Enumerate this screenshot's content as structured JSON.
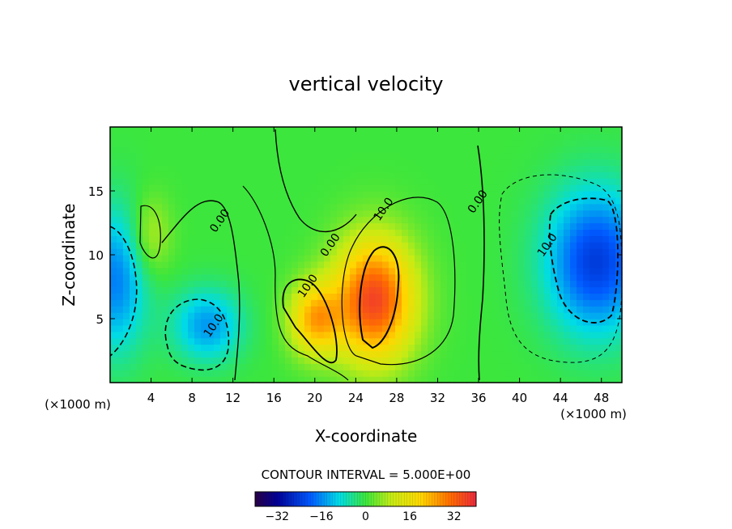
{
  "chart_data": {
    "type": "heatmap",
    "title": "vertical velocity",
    "xlabel": "X-coordinate",
    "ylabel": "Z-coordinate",
    "x_unit_left": "(×1000 m)",
    "x_unit_right": "(×1000 m)",
    "xlim": [
      0,
      50
    ],
    "ylim": [
      0,
      20
    ],
    "xticks": [
      "4",
      "8",
      "12",
      "16",
      "20",
      "24",
      "28",
      "32",
      "36",
      "40",
      "44",
      "48"
    ],
    "xtick_values": [
      4,
      8,
      12,
      16,
      20,
      24,
      28,
      32,
      36,
      40,
      44,
      48
    ],
    "yticks": [
      "5",
      "10",
      "15"
    ],
    "ytick_values": [
      5,
      10,
      15
    ],
    "contour_interval_text": "CONTOUR INTERVAL = 5.000E+00",
    "contour_labels": [
      {
        "text": "0.00",
        "x": 11,
        "y": 12.5
      },
      {
        "text": "0.00",
        "x": 21.8,
        "y": 10.6
      },
      {
        "text": "0.00",
        "x": 36.2,
        "y": 14
      },
      {
        "text": "10.0",
        "x": 27,
        "y": 13.4
      },
      {
        "text": "10.0",
        "x": 19.6,
        "y": 7.4
      },
      {
        "text": "10.0",
        "x": 10.4,
        "y": 4.3
      },
      {
        "text": "10.0",
        "x": 43,
        "y": 10.6
      }
    ],
    "field_blobs": [
      {
        "x": 25.8,
        "y": 6.5,
        "sx": 2.8,
        "sy": 3.4,
        "amp": 36
      },
      {
        "x": 20.0,
        "y": 5.0,
        "sx": 1.8,
        "sy": 2.0,
        "amp": 23
      },
      {
        "x": 47.5,
        "y": 9.5,
        "sx": 3.5,
        "sy": 4.0,
        "amp": -24
      },
      {
        "x": 0.5,
        "y": 8.0,
        "sx": 2.2,
        "sy": 4.0,
        "amp": -17
      },
      {
        "x": 9.5,
        "y": 4.5,
        "sx": 2.4,
        "sy": 2.0,
        "amp": -15
      },
      {
        "x": 4.0,
        "y": 11.5,
        "sx": 1.4,
        "sy": 2.2,
        "amp": 9
      }
    ],
    "colorbar": {
      "min": -40,
      "max": 40,
      "tick_labels": [
        "−32",
        "−16",
        "0",
        "16",
        "32"
      ],
      "tick_values": [
        -32,
        -16,
        0,
        16,
        32
      ]
    }
  }
}
